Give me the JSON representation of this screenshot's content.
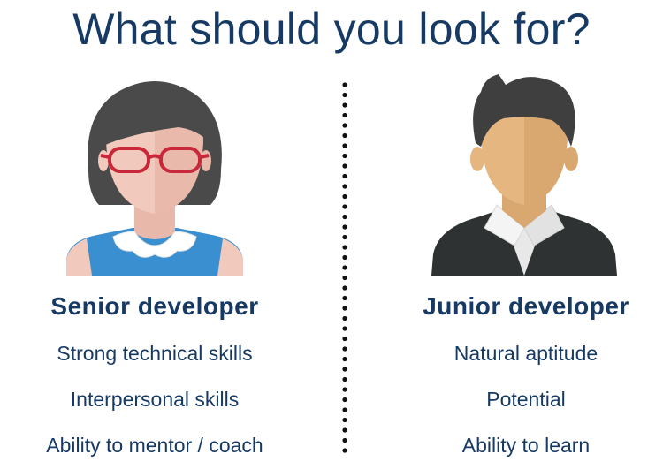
{
  "title": "What should you look for?",
  "senior": {
    "role": "Senior developer",
    "skills": [
      "Strong technical skills",
      "Interpersonal skills",
      "Ability to mentor / coach"
    ]
  },
  "junior": {
    "role": "Junior developer",
    "skills": [
      "Natural aptitude",
      "Potential",
      "Ability to learn"
    ]
  },
  "colors": {
    "text": "#163a63",
    "hair": "#4a4a4a",
    "skin_female": "#f2c9bd",
    "glasses": "#c8283a",
    "top_female": "#3a8fd0",
    "skin_male": "#e6b680",
    "suit": "#2e3233",
    "shirt": "#e8e8e8"
  },
  "icons": {
    "senior": "female-developer-avatar-icon",
    "junior": "male-developer-avatar-icon"
  }
}
